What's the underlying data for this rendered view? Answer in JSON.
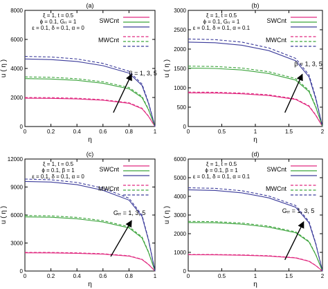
{
  "colors": {
    "swcnt": "#e0287f",
    "mw_high": "#2f2f8f",
    "mid": "#3aa33a",
    "low": "#e0287f",
    "high": "#3a3a9a",
    "axis": "#000000",
    "arrow": "#000000"
  },
  "chart_data": [
    {
      "panel": "(a)",
      "type": "line",
      "xlabel": "η",
      "ylabel": "u ( η )",
      "xlim": [
        0,
        1
      ],
      "ylim": [
        0,
        8000
      ],
      "xticks": [
        "0",
        "0.2",
        "0.4",
        "0.6",
        "0.8",
        "1"
      ],
      "yticks": [
        "0",
        "2000",
        "4000",
        "6000",
        "8000"
      ],
      "params": [
        "ξ = 1, t = 0.5",
        "ϕ = 0.1, Gᵣᵣ = 1",
        "ε = 0.1, δ = 0.1, α = 0"
      ],
      "legend": [
        "SWCnt",
        "MWCnt"
      ],
      "annotation": "β = 1, 3, 5",
      "series": [
        {
          "group": "SWCnt",
          "values": [
            1950,
            1940,
            1900,
            1810,
            1600,
            1230,
            700,
            0
          ]
        },
        {
          "group": "SWCnt",
          "values": [
            3300,
            3270,
            3180,
            2980,
            2600,
            2000,
            1150,
            0
          ]
        },
        {
          "group": "SWCnt",
          "values": [
            4650,
            4610,
            4480,
            4190,
            3680,
            2830,
            1600,
            0
          ]
        },
        {
          "group": "MWCnt",
          "values": [
            2000,
            1990,
            1950,
            1850,
            1640,
            1260,
            720,
            0
          ]
        },
        {
          "group": "MWCnt",
          "values": [
            3420,
            3390,
            3290,
            3080,
            2690,
            2070,
            1190,
            0
          ]
        },
        {
          "group": "MWCnt",
          "values": [
            4830,
            4790,
            4650,
            4350,
            3810,
            2930,
            1660,
            0
          ]
        }
      ],
      "x": [
        0,
        0.2,
        0.4,
        0.6,
        0.8,
        0.9,
        0.95,
        1
      ]
    },
    {
      "panel": "(b)",
      "type": "line",
      "xlabel": "η",
      "ylabel": "u ( η )",
      "xlim": [
        0,
        2
      ],
      "ylim": [
        0,
        3000
      ],
      "xticks": [
        "0",
        "0.5",
        "1",
        "1.5",
        "2"
      ],
      "yticks": [
        "0",
        "500",
        "1000",
        "1500",
        "2000",
        "2500",
        "3000"
      ],
      "params": [
        "ξ = 1, t = 0.5",
        "ϕ = 0.1, Gᵣᵣ = 1",
        "ε = 0.1, δ = 0.1, α = 0.1"
      ],
      "legend": [
        "SWCnt",
        "MWCnt"
      ],
      "annotation": "β = 1, 3, 5",
      "series": [
        {
          "group": "SWCnt",
          "values": [
            870,
            865,
            845,
            800,
            700,
            520,
            290,
            0
          ]
        },
        {
          "group": "SWCnt",
          "values": [
            1510,
            1500,
            1460,
            1370,
            1200,
            900,
            500,
            0
          ]
        },
        {
          "group": "SWCnt",
          "values": [
            2180,
            2165,
            2100,
            1960,
            1700,
            1280,
            720,
            0
          ]
        },
        {
          "group": "MWCnt",
          "values": [
            890,
            885,
            865,
            820,
            715,
            535,
            300,
            0
          ]
        },
        {
          "group": "MWCnt",
          "values": [
            1560,
            1550,
            1510,
            1415,
            1240,
            930,
            520,
            0
          ]
        },
        {
          "group": "MWCnt",
          "values": [
            2260,
            2245,
            2180,
            2030,
            1760,
            1330,
            750,
            0
          ]
        }
      ],
      "x": [
        0,
        0.4,
        0.8,
        1.2,
        1.6,
        1.8,
        1.9,
        2
      ]
    },
    {
      "panel": "(c)",
      "type": "line",
      "xlabel": "η",
      "ylabel": "u ( η )",
      "xlim": [
        0,
        1
      ],
      "ylim": [
        0,
        12000
      ],
      "xticks": [
        "0",
        "0.2",
        "0.4",
        "0.6",
        "0.8",
        "1"
      ],
      "yticks": [
        "0",
        "3000",
        "6000",
        "9000",
        "12000"
      ],
      "params": [
        "ξ = 1, t = 0.5",
        "ϕ = 0.1, β = 1",
        "ε = 0.1, δ = 0.1, α = 0"
      ],
      "legend": [
        "SWCnt",
        "MWCnt"
      ],
      "annotation": "Gᵣᵣ = 1, 3, 5",
      "series": [
        {
          "group": "SWCnt",
          "values": [
            1950,
            1940,
            1900,
            1810,
            1600,
            1230,
            700,
            0
          ]
        },
        {
          "group": "SWCnt",
          "values": [
            5800,
            5760,
            5600,
            5250,
            4620,
            3550,
            2000,
            0
          ]
        },
        {
          "group": "SWCnt",
          "values": [
            9600,
            9530,
            9250,
            8650,
            7600,
            5850,
            3300,
            0
          ]
        },
        {
          "group": "MWCnt",
          "values": [
            2000,
            1990,
            1950,
            1850,
            1640,
            1260,
            720,
            0
          ]
        },
        {
          "group": "MWCnt",
          "values": [
            5950,
            5910,
            5750,
            5390,
            4740,
            3650,
            2060,
            0
          ]
        },
        {
          "group": "MWCnt",
          "values": [
            9850,
            9780,
            9490,
            8880,
            7800,
            6000,
            3390,
            0
          ]
        }
      ],
      "x": [
        0,
        0.2,
        0.4,
        0.6,
        0.8,
        0.9,
        0.95,
        1
      ]
    },
    {
      "panel": "(d)",
      "type": "line",
      "xlabel": "η",
      "ylabel": "u ( η )",
      "xlim": [
        0,
        2
      ],
      "ylim": [
        0,
        6000
      ],
      "xticks": [
        "0",
        "0.5",
        "1",
        "1.5",
        "2"
      ],
      "yticks": [
        "0",
        "1000",
        "2000",
        "3000",
        "4000",
        "5000",
        "6000"
      ],
      "params": [
        "ξ = 1, t = 0.5",
        "ϕ = 0.1, β = 1",
        "ε = 0.1, δ = 0.1, α = 0.1"
      ],
      "legend": [
        "SWCnt",
        "MWCnt"
      ],
      "annotation": "Gᵣᵣ = 1, 3, 5",
      "series": [
        {
          "group": "SWCnt",
          "values": [
            870,
            865,
            845,
            800,
            700,
            520,
            290,
            0
          ]
        },
        {
          "group": "SWCnt",
          "values": [
            2600,
            2585,
            2510,
            2350,
            2050,
            1550,
            870,
            0
          ]
        },
        {
          "group": "SWCnt",
          "values": [
            4350,
            4320,
            4190,
            3920,
            3420,
            2580,
            1450,
            0
          ]
        },
        {
          "group": "MWCnt",
          "values": [
            890,
            885,
            865,
            820,
            715,
            535,
            300,
            0
          ]
        },
        {
          "group": "MWCnt",
          "values": [
            2660,
            2645,
            2570,
            2405,
            2100,
            1590,
            890,
            0
          ]
        },
        {
          "group": "MWCnt",
          "values": [
            4460,
            4430,
            4300,
            4020,
            3510,
            2650,
            1490,
            0
          ]
        }
      ],
      "x": [
        0,
        0.4,
        0.8,
        1.2,
        1.6,
        1.8,
        1.9,
        2
      ]
    }
  ]
}
